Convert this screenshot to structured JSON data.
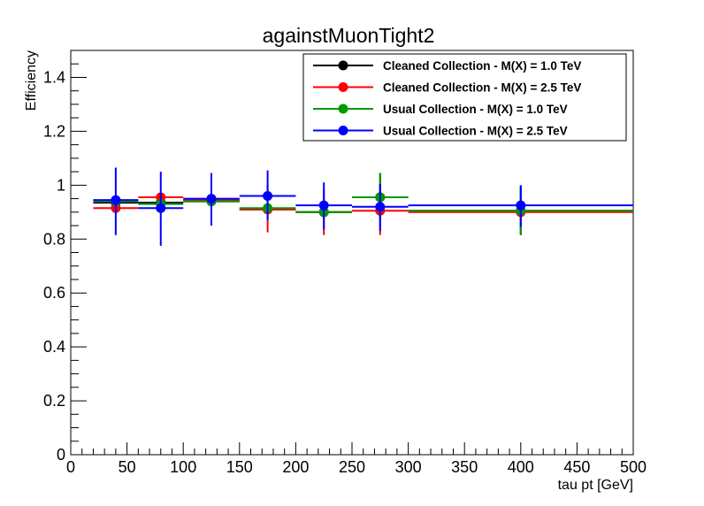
{
  "chart_data": {
    "type": "scatter",
    "title": "againstMuonTight2",
    "xlabel": "tau pt [GeV]",
    "ylabel": "Efficiency",
    "xlim": [
      0,
      500
    ],
    "ylim": [
      0,
      1.5
    ],
    "x_ticks": [
      "0",
      "50",
      "100",
      "150",
      "200",
      "250",
      "300",
      "350",
      "400",
      "450",
      "500"
    ],
    "y_ticks": [
      "0",
      "0.2",
      "0.4",
      "0.6",
      "0.8",
      "1",
      "1.2",
      "1.4"
    ],
    "grid": false,
    "legend_position": "top-right",
    "series": [
      {
        "name": "Cleaned Collection - M(X) = 1.0 TeV",
        "color": "#000000",
        "points": [
          {
            "x": 40,
            "xlo": 20,
            "xhi": 60,
            "y": 0.935,
            "ylo": 0.935,
            "yhi": 0.935
          },
          {
            "x": 80,
            "xlo": 60,
            "xhi": 100,
            "y": 0.935,
            "ylo": 0.935,
            "yhi": 0.935
          },
          {
            "x": 125,
            "xlo": 100,
            "xhi": 150,
            "y": 0.94,
            "ylo": 0.94,
            "yhi": 0.94
          },
          {
            "x": 175,
            "xlo": 150,
            "xhi": 200,
            "y": 0.91,
            "ylo": 0.91,
            "yhi": 0.91
          },
          {
            "x": 225,
            "xlo": 200,
            "xhi": 250,
            "y": 0.9,
            "ylo": 0.9,
            "yhi": 0.9
          },
          {
            "x": 275,
            "xlo": 250,
            "xhi": 300,
            "y": 0.955,
            "ylo": 0.87,
            "yhi": 1.045
          },
          {
            "x": 400,
            "xlo": 300,
            "xhi": 500,
            "y": 0.905,
            "ylo": 0.815,
            "yhi": 0.995
          }
        ]
      },
      {
        "name": "Cleaned Collection - M(X) = 2.5 TeV",
        "color": "#ff0000",
        "points": [
          {
            "x": 40,
            "xlo": 20,
            "xhi": 60,
            "y": 0.915,
            "ylo": 0.915,
            "yhi": 0.915
          },
          {
            "x": 80,
            "xlo": 60,
            "xhi": 100,
            "y": 0.955,
            "ylo": 0.955,
            "yhi": 0.955
          },
          {
            "x": 125,
            "xlo": 100,
            "xhi": 150,
            "y": 0.945,
            "ylo": 0.945,
            "yhi": 0.945
          },
          {
            "x": 175,
            "xlo": 150,
            "xhi": 200,
            "y": 0.91,
            "ylo": 0.825,
            "yhi": 1.0
          },
          {
            "x": 225,
            "xlo": 200,
            "xhi": 250,
            "y": 0.9,
            "ylo": 0.815,
            "yhi": 0.985
          },
          {
            "x": 275,
            "xlo": 250,
            "xhi": 300,
            "y": 0.905,
            "ylo": 0.815,
            "yhi": 0.995
          },
          {
            "x": 400,
            "xlo": 300,
            "xhi": 500,
            "y": 0.9,
            "ylo": 0.82,
            "yhi": 0.98
          }
        ]
      },
      {
        "name": "Usual Collection - M(X) = 1.0 TeV",
        "color": "#009900",
        "points": [
          {
            "x": 40,
            "xlo": 20,
            "xhi": 60,
            "y": 0.94,
            "ylo": 0.94,
            "yhi": 0.94
          },
          {
            "x": 80,
            "xlo": 60,
            "xhi": 100,
            "y": 0.93,
            "ylo": 0.93,
            "yhi": 0.93
          },
          {
            "x": 125,
            "xlo": 100,
            "xhi": 150,
            "y": 0.94,
            "ylo": 0.94,
            "yhi": 0.94
          },
          {
            "x": 175,
            "xlo": 150,
            "xhi": 200,
            "y": 0.915,
            "ylo": 0.915,
            "yhi": 0.915
          },
          {
            "x": 225,
            "xlo": 200,
            "xhi": 250,
            "y": 0.9,
            "ylo": 0.9,
            "yhi": 0.9
          },
          {
            "x": 275,
            "xlo": 250,
            "xhi": 300,
            "y": 0.955,
            "ylo": 0.87,
            "yhi": 1.045
          },
          {
            "x": 400,
            "xlo": 300,
            "xhi": 500,
            "y": 0.905,
            "ylo": 0.815,
            "yhi": 0.995
          }
        ]
      },
      {
        "name": "Usual Collection - M(X) = 2.5 TeV",
        "color": "#0000ff",
        "points": [
          {
            "x": 40,
            "xlo": 20,
            "xhi": 60,
            "y": 0.945,
            "ylo": 0.815,
            "yhi": 1.065
          },
          {
            "x": 80,
            "xlo": 60,
            "xhi": 100,
            "y": 0.915,
            "ylo": 0.775,
            "yhi": 1.05
          },
          {
            "x": 125,
            "xlo": 100,
            "xhi": 150,
            "y": 0.95,
            "ylo": 0.85,
            "yhi": 1.045
          },
          {
            "x": 175,
            "xlo": 150,
            "xhi": 200,
            "y": 0.96,
            "ylo": 0.87,
            "yhi": 1.055
          },
          {
            "x": 225,
            "xlo": 200,
            "xhi": 250,
            "y": 0.925,
            "ylo": 0.835,
            "yhi": 1.01
          },
          {
            "x": 275,
            "xlo": 250,
            "xhi": 300,
            "y": 0.92,
            "ylo": 0.83,
            "yhi": 1.005
          },
          {
            "x": 400,
            "xlo": 300,
            "xhi": 500,
            "y": 0.925,
            "ylo": 0.845,
            "yhi": 1.0
          }
        ]
      }
    ]
  }
}
